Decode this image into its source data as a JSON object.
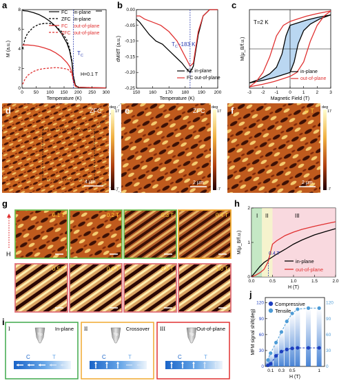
{
  "panels": {
    "a": {
      "label": "a",
      "legend": [
        "FC",
        "in-plane",
        "ZFC",
        "in-plane",
        "FC",
        "out-of-plane",
        "ZFC",
        "out-of-plane"
      ],
      "annotation_tc": "T",
      "annotation_tc_sub": "C",
      "annotation_field": "H=0.1 T"
    },
    "b": {
      "label": "b",
      "annotation": "T",
      "annotation_sub": "C",
      "annotation_value": "~183 K",
      "legend": [
        "FC in-plane",
        "FC out-of-plane"
      ]
    },
    "c": {
      "label": "c",
      "annotation": "T=2 K",
      "legend": [
        "in-plane",
        "out-of-plane"
      ]
    },
    "d": {
      "label": "d",
      "tag": "ZFC",
      "scalebar": "4 μm"
    },
    "e": {
      "label": "e",
      "tag": "ZFC",
      "scalebar": "2 μm"
    },
    "f": {
      "label": "f",
      "tag": "0 T",
      "scalebar": "2 μm"
    },
    "g": {
      "label": "g",
      "axis": "H",
      "fields": [
        "0.1 T",
        "0.2 T",
        "0.3 T",
        "0.4 T",
        "0.5 T",
        "0.6 T",
        "0.8 T",
        "1.0 T"
      ]
    },
    "h": {
      "label": "h",
      "regions": [
        "I",
        "II",
        "III"
      ],
      "annotation": "0.4 T",
      "legend": [
        "in-plane",
        "out-of-plane"
      ]
    },
    "i": {
      "label": "i",
      "boxes": [
        {
          "roman": "I",
          "title": "In-plane",
          "tip": "Tip",
          "c": "C",
          "t": "T"
        },
        {
          "roman": "II",
          "title": "Crossover",
          "tip": "Tip",
          "c": "C",
          "t": "T"
        },
        {
          "roman": "III",
          "title": "Out-of-plane",
          "tip": "Tip",
          "c": "C",
          "t": "T"
        }
      ]
    },
    "j": {
      "label": "j",
      "legend": [
        "Compressive",
        "Tensile"
      ]
    }
  },
  "colorbars": {
    "deg_label": "deg",
    "max": "17",
    "min": "-7"
  },
  "chart_data": [
    {
      "panel": "a",
      "type": "line",
      "xlabel": "Temperature (K)",
      "ylabel": "M (a.u.)",
      "xlim": [
        0,
        300
      ],
      "xticks": [
        "0",
        "50",
        "100",
        "150",
        "200",
        "250",
        "300"
      ],
      "ylim": [
        0,
        8
      ],
      "yticks": [
        "0",
        "2",
        "4",
        "6",
        "8"
      ],
      "series": [
        {
          "name": "FC in-plane",
          "color": "#000000",
          "dash": "solid",
          "x": [
            2,
            20,
            40,
            60,
            80,
            100,
            120,
            140,
            160,
            170,
            178,
            183,
            190,
            200,
            250,
            300
          ],
          "y": [
            7.9,
            7.85,
            7.7,
            7.5,
            7.2,
            6.8,
            6.3,
            5.6,
            4.6,
            3.8,
            2.6,
            1.2,
            0.3,
            0.1,
            0.05,
            0.03
          ]
        },
        {
          "name": "ZFC in-plane",
          "color": "#000000",
          "dash": "dashed",
          "x": [
            2,
            10,
            20,
            40,
            60,
            80,
            100,
            120,
            140,
            160,
            170,
            178,
            183,
            190,
            200
          ],
          "y": [
            4.0,
            5.0,
            5.6,
            6.2,
            6.5,
            6.6,
            6.6,
            6.3,
            5.8,
            4.9,
            4.0,
            2.8,
            1.3,
            0.3,
            0.1
          ]
        },
        {
          "name": "FC out-of-plane",
          "color": "#e03030",
          "dash": "solid",
          "x": [
            2,
            20,
            40,
            60,
            80,
            100,
            120,
            140,
            160,
            170,
            178,
            183,
            190,
            200,
            250,
            300
          ],
          "y": [
            4.4,
            4.4,
            4.35,
            4.25,
            4.1,
            3.9,
            3.6,
            3.2,
            2.6,
            2.2,
            1.6,
            0.8,
            0.2,
            0.1,
            0.05,
            0.03
          ]
        },
        {
          "name": "ZFC out-of-plane",
          "color": "#e03030",
          "dash": "dashed",
          "x": [
            2,
            10,
            20,
            40,
            60,
            80,
            100,
            120,
            140,
            160,
            170,
            178,
            183,
            190,
            200
          ],
          "y": [
            0.4,
            0.9,
            1.3,
            1.7,
            1.9,
            2.0,
            2.05,
            2.1,
            2.05,
            1.95,
            1.8,
            1.4,
            0.7,
            0.2,
            0.1
          ]
        }
      ]
    },
    {
      "panel": "b",
      "type": "line",
      "xlabel": "Temperature (K)",
      "ylabel": "dM/dT (a.u.)",
      "xlim": [
        150,
        200
      ],
      "xticks": [
        "150",
        "160",
        "170",
        "180",
        "190",
        "200"
      ],
      "ylim": [
        -0.25,
        0.0
      ],
      "yticks": [
        "0.00",
        "-0.05",
        "-0.10",
        "-0.15",
        "-0.20",
        "-0.25"
      ],
      "series": [
        {
          "name": "FC in-plane",
          "color": "#000000",
          "x": [
            150,
            152,
            155,
            158,
            162,
            166,
            170,
            174,
            178,
            181,
            183,
            185,
            188,
            191,
            195,
            200
          ],
          "y": [
            -0.03,
            -0.04,
            -0.06,
            -0.08,
            -0.1,
            -0.11,
            -0.13,
            -0.15,
            -0.17,
            -0.19,
            -0.2,
            -0.18,
            -0.08,
            -0.02,
            0.0,
            0.0
          ]
        },
        {
          "name": "FC out-of-plane",
          "color": "#e03030",
          "x": [
            150,
            152,
            155,
            160,
            165,
            170,
            175,
            178,
            181,
            183,
            185,
            188,
            191,
            195,
            200
          ],
          "y": [
            -0.02,
            -0.02,
            -0.03,
            -0.04,
            -0.05,
            -0.07,
            -0.1,
            -0.13,
            -0.16,
            -0.18,
            -0.17,
            -0.07,
            -0.02,
            0.0,
            0.0
          ]
        }
      ]
    },
    {
      "panel": "c",
      "type": "line",
      "xlabel": "Magnetic Field (T)",
      "ylabel": "M(μ_B/f.u.)",
      "xlim": [
        -3,
        3
      ],
      "xticks": [
        "-3",
        "-2",
        "-1",
        "0",
        "1",
        "2",
        "3"
      ],
      "ylim": [
        -1.5,
        1.5
      ],
      "series": [
        {
          "name": "in-plane",
          "color": "#000000",
          "x": [
            -3,
            -2,
            -1.2,
            -0.6,
            0,
            0.3,
            0.6,
            1.0,
            1.5,
            2.2,
            3,
            2,
            1.2,
            0.6,
            0,
            -0.3,
            -0.6,
            -1.0,
            -1.5,
            -2.2,
            -3
          ],
          "y": [
            -1.3,
            -1.2,
            -1.1,
            -1.0,
            -0.9,
            -0.5,
            0.2,
            0.7,
            0.95,
            1.15,
            1.3,
            1.2,
            1.1,
            1.0,
            0.9,
            0.5,
            -0.2,
            -0.7,
            -0.95,
            -1.15,
            -1.3
          ]
        },
        {
          "name": "out-of-plane",
          "color": "#e03030",
          "x": [
            -3,
            -2,
            -1.2,
            -0.6,
            0,
            0.5,
            1.0,
            1.5,
            2.0,
            2.5,
            3,
            2,
            1.2,
            0.6,
            0,
            -0.5,
            -1.0,
            -1.5,
            -2.0,
            -2.5,
            -3
          ],
          "y": [
            -1.45,
            -1.35,
            -1.25,
            -1.15,
            -1.05,
            -0.9,
            -0.5,
            0.3,
            0.9,
            1.25,
            1.45,
            1.35,
            1.25,
            1.15,
            1.05,
            0.9,
            0.5,
            -0.3,
            -0.9,
            -1.25,
            -1.45
          ]
        }
      ]
    },
    {
      "panel": "h",
      "type": "line",
      "xlabel": "H (T)",
      "ylabel": "M(μ_B/f.u.)",
      "xlim": [
        0,
        2
      ],
      "xticks": [
        "0.0",
        "0.5",
        "1.0",
        "1.5",
        "2.0"
      ],
      "ylim": [
        0,
        2
      ],
      "yticks": [
        "0",
        "1",
        "2"
      ],
      "series": [
        {
          "name": "in-plane",
          "color": "#000000",
          "x": [
            0,
            0.1,
            0.2,
            0.3,
            0.4,
            0.5,
            0.6,
            0.8,
            1.0,
            1.2,
            1.5,
            1.8,
            2.0
          ],
          "y": [
            0,
            0.15,
            0.3,
            0.42,
            0.5,
            0.58,
            0.66,
            0.8,
            0.95,
            1.07,
            1.22,
            1.33,
            1.4
          ]
        },
        {
          "name": "out-of-plane",
          "color": "#e03030",
          "x": [
            0,
            0.1,
            0.2,
            0.3,
            0.4,
            0.45,
            0.5,
            0.6,
            0.8,
            1.0,
            1.2,
            1.5,
            1.8,
            2.0
          ],
          "y": [
            0,
            0.05,
            0.12,
            0.22,
            0.45,
            0.7,
            0.95,
            1.05,
            1.2,
            1.3,
            1.38,
            1.47,
            1.55,
            1.6
          ]
        }
      ]
    },
    {
      "panel": "j",
      "type": "scatter",
      "xlabel": "H (T)",
      "ylabel": "MFM signal shift(deg)",
      "xticks": [
        "0.1",
        "0.3",
        "0.5",
        "1"
      ],
      "yticks_left": [
        "0",
        "30",
        "60",
        "90",
        "120"
      ],
      "yticks_right": [
        "0",
        "30",
        "60",
        "90",
        "120"
      ],
      "series": [
        {
          "name": "Compressive",
          "color": "#1d3fbf",
          "x": [
            0.05,
            0.1,
            0.2,
            0.3,
            0.4,
            0.5,
            0.6,
            0.8,
            1.0
          ],
          "y": [
            2,
            5,
            20,
            28,
            32,
            34,
            35,
            35,
            35
          ]
        },
        {
          "name": "Tensile",
          "color": "#4d9bd6",
          "x": [
            0.05,
            0.1,
            0.2,
            0.3,
            0.4,
            0.5,
            0.6,
            0.8,
            1.0
          ],
          "y": [
            12,
            25,
            45,
            65,
            85,
            100,
            108,
            110,
            110
          ]
        }
      ]
    }
  ]
}
